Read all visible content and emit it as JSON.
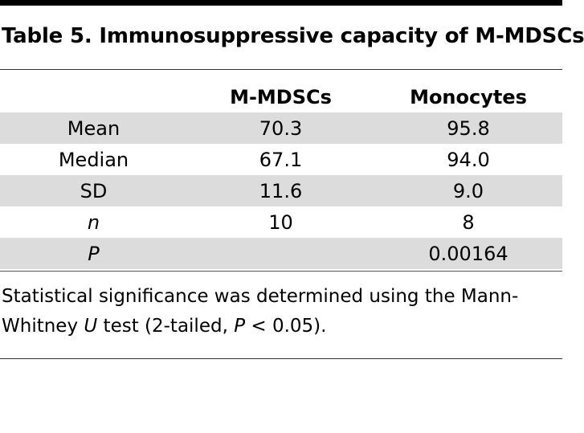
{
  "title": "Table 5. Immunosuppressive capacity of M-MDSCs",
  "table": {
    "headers": [
      "",
      "M-MDSCs",
      "Monocytes"
    ],
    "rows": [
      {
        "label": "Mean",
        "m_mdscs": "70.3",
        "monocytes": "95.8"
      },
      {
        "label": "Median",
        "m_mdscs": "67.1",
        "monocytes": "94.0"
      },
      {
        "label": "SD",
        "m_mdscs": "11.6",
        "monocytes": "9.0"
      },
      {
        "label": "n",
        "m_mdscs": "10",
        "monocytes": "8"
      },
      {
        "label": "P",
        "m_mdscs": "",
        "monocytes": "0.00164"
      }
    ]
  },
  "footnote": {
    "part1": "Statistical significance was determined using the Mann-Whitney ",
    "u": "U",
    "part2": " test (2-tailed, ",
    "p": "P",
    "part3": " < 0.05)."
  }
}
